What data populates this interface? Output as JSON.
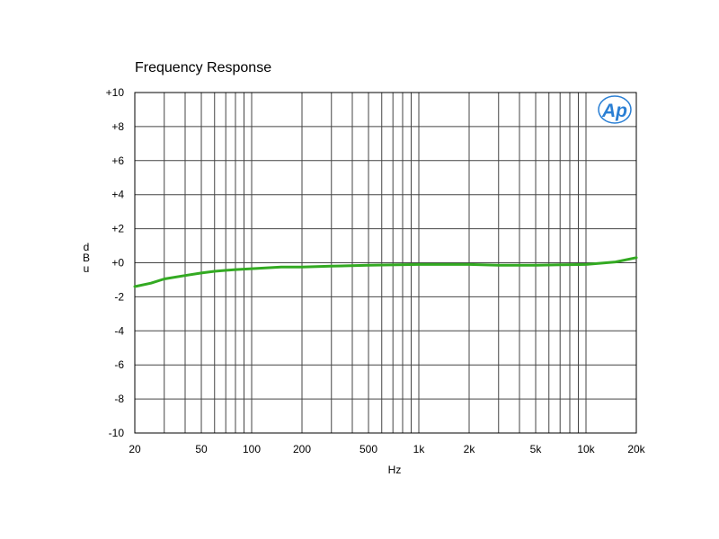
{
  "chart_data": {
    "type": "line",
    "title": "Frequency Response",
    "xlabel": "Hz",
    "ylabel": "dBu",
    "x_scale": "log",
    "xlim": [
      20,
      20000
    ],
    "ylim": [
      -10,
      10
    ],
    "grid": true,
    "x_ticks": [
      {
        "value": 20,
        "label": "20"
      },
      {
        "value": 50,
        "label": "50"
      },
      {
        "value": 100,
        "label": "100"
      },
      {
        "value": 200,
        "label": "200"
      },
      {
        "value": 500,
        "label": "500"
      },
      {
        "value": 1000,
        "label": "1k"
      },
      {
        "value": 2000,
        "label": "2k"
      },
      {
        "value": 5000,
        "label": "5k"
      },
      {
        "value": 10000,
        "label": "10k"
      },
      {
        "value": 20000,
        "label": "20k"
      }
    ],
    "y_ticks": [
      {
        "value": 10,
        "label": "+10"
      },
      {
        "value": 8,
        "label": "+8"
      },
      {
        "value": 6,
        "label": "+6"
      },
      {
        "value": 4,
        "label": "+4"
      },
      {
        "value": 2,
        "label": "+2"
      },
      {
        "value": 0,
        "label": "+0"
      },
      {
        "value": -2,
        "label": "-2"
      },
      {
        "value": -4,
        "label": "-4"
      },
      {
        "value": -6,
        "label": "-6"
      },
      {
        "value": -8,
        "label": "-8"
      },
      {
        "value": -10,
        "label": "-10"
      }
    ],
    "series": [
      {
        "color": "#33aa22",
        "x": [
          20,
          25,
          30,
          40,
          50,
          60,
          80,
          100,
          150,
          200,
          300,
          500,
          1000,
          2000,
          3000,
          5000,
          7000,
          10000,
          15000,
          20000
        ],
        "y": [
          -1.4,
          -1.2,
          -0.95,
          -0.75,
          -0.6,
          -0.5,
          -0.4,
          -0.35,
          -0.25,
          -0.25,
          -0.2,
          -0.15,
          -0.1,
          -0.1,
          -0.15,
          -0.15,
          -0.12,
          -0.1,
          0.05,
          0.3
        ]
      }
    ]
  },
  "logo": {
    "text": "Ap",
    "color": "#2a7fd4"
  }
}
